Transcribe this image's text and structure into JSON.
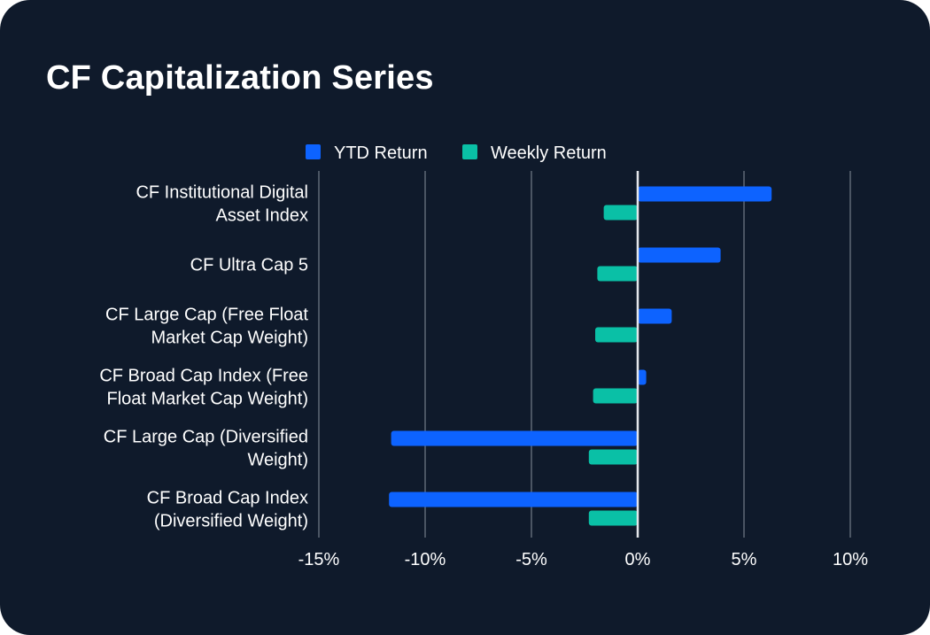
{
  "title": "CF Capitalization Series",
  "colors": {
    "background": "#0f1a2b",
    "ytd": "#0d63ff",
    "weekly": "#0ac0a6",
    "grid": "#4b5563",
    "zero_line": "#e5e7eb"
  },
  "chart_data": {
    "type": "bar",
    "orientation": "horizontal",
    "title": "CF Capitalization Series",
    "categories": [
      [
        "CF Institutional Digital",
        "Asset Index"
      ],
      [
        "CF Ultra Cap 5"
      ],
      [
        "CF Large Cap (Free Float",
        "Market Cap Weight)"
      ],
      [
        "CF Broad Cap Index (Free",
        "Float Market Cap Weight)"
      ],
      [
        "CF Large Cap (Diversified",
        "Weight)"
      ],
      [
        "CF Broad Cap Index",
        "(Diversified Weight)"
      ]
    ],
    "series": [
      {
        "name": "YTD Return",
        "color": "#0d63ff",
        "values": [
          6.3,
          3.9,
          1.6,
          0.4,
          -11.6,
          -11.7
        ]
      },
      {
        "name": "Weekly Return",
        "color": "#0ac0a6",
        "values": [
          -1.6,
          -1.9,
          -2.0,
          -2.1,
          -2.3,
          -2.3
        ]
      }
    ],
    "xlim": [
      -15,
      10
    ],
    "xticks": [
      -15,
      -10,
      -5,
      0,
      5,
      10
    ],
    "xtick_labels": [
      "-15%",
      "-10%",
      "-5%",
      "0%",
      "5%",
      "10%"
    ],
    "grid": true,
    "legend_position": "top"
  }
}
